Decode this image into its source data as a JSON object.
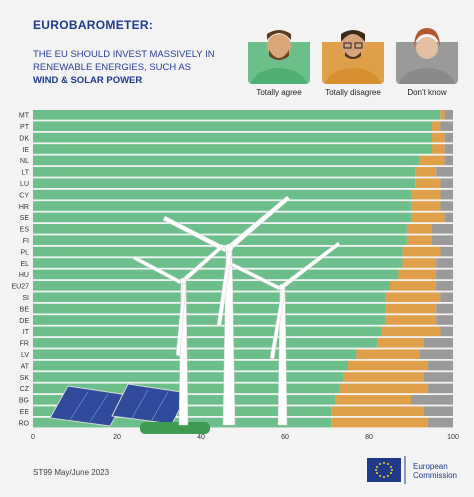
{
  "header": {
    "title": "EUROBAROMETER:",
    "subtitle_line1": "THE EU SHOULD INVEST MASSIVELY IN",
    "subtitle_line2": "RENEWABLE ENERGIES, SUCH AS",
    "subtitle_bold": "WIND & SOLAR POWER"
  },
  "legend": {
    "agree": "Totally agree",
    "disagree": "Totally disagree",
    "dont_know": "Don't know"
  },
  "footer": {
    "source": "ST99 May/June 2023",
    "logo_line1": "European",
    "logo_line2": "Commission"
  },
  "colors": {
    "agree": "#6cbf8a",
    "disagree": "#e0a04a",
    "dont_know": "#9a9a9a",
    "title": "#1f3a8a"
  },
  "chart_data": {
    "type": "bar",
    "orientation": "horizontal",
    "stacked": true,
    "categories": [
      "MT",
      "PT",
      "DK",
      "IE",
      "NL",
      "LT",
      "LU",
      "CY",
      "HR",
      "SE",
      "ES",
      "FI",
      "PL",
      "EL",
      "HU",
      "EU27",
      "SI",
      "BE",
      "DE",
      "IT",
      "FR",
      "LV",
      "AT",
      "SK",
      "CZ",
      "BG",
      "EE",
      "RO"
    ],
    "series": [
      {
        "name": "Totally agree",
        "values": [
          97,
          95,
          95,
          95,
          92,
          91,
          91,
          90,
          90,
          90,
          89,
          89,
          88,
          88,
          87,
          85,
          84,
          84,
          84,
          83,
          82,
          77,
          75,
          74,
          73,
          72,
          71,
          71
        ]
      },
      {
        "name": "Totally disagree",
        "values": [
          1,
          2,
          3,
          3,
          6,
          5,
          6,
          7,
          7,
          8,
          6,
          6,
          9,
          8,
          9,
          11,
          13,
          12,
          12,
          14,
          11,
          15,
          19,
          19,
          21,
          18,
          22,
          23
        ]
      },
      {
        "name": "Don't know",
        "values": [
          2,
          3,
          2,
          2,
          2,
          4,
          3,
          3,
          3,
          2,
          5,
          5,
          3,
          4,
          4,
          4,
          3,
          4,
          4,
          3,
          7,
          8,
          6,
          7,
          6,
          10,
          7,
          6
        ]
      }
    ],
    "xlim": [
      0,
      100
    ],
    "xticks": [
      0,
      20,
      40,
      60,
      80,
      100
    ]
  }
}
